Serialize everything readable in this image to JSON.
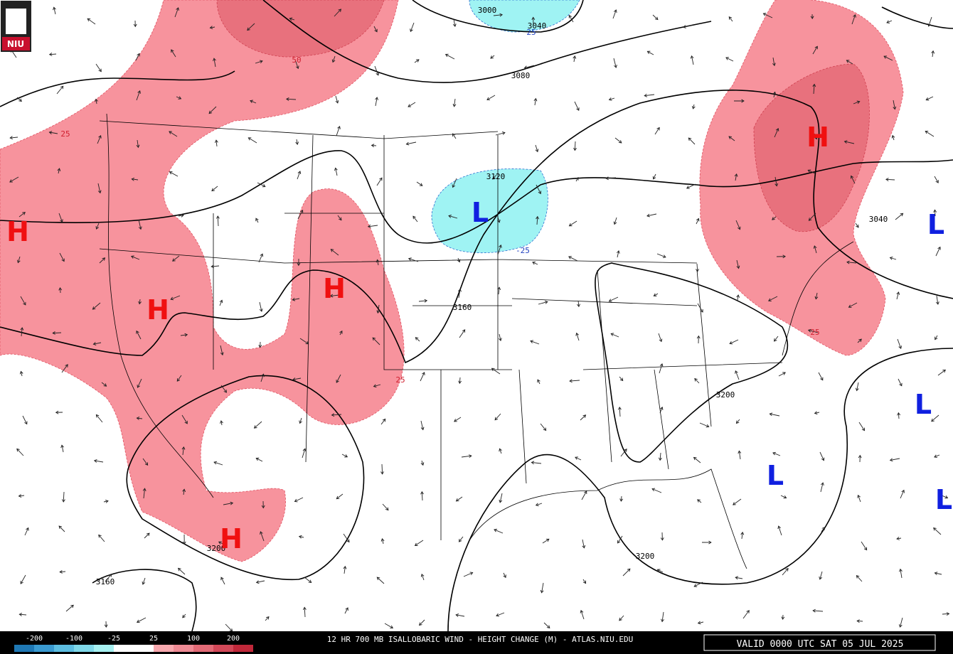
{
  "logo": "NIU",
  "contour_labels": [
    3000,
    3040,
    3080,
    3120,
    3160,
    3200,
    3200,
    3160,
    3200,
    3040
  ],
  "change_labels": [
    25,
    -25,
    50,
    25,
    25,
    25
  ],
  "highs": [
    "H",
    "H",
    "H",
    "H",
    "H"
  ],
  "lows": [
    "L",
    "L",
    "L",
    "L",
    "L"
  ],
  "legend": {
    "ticks": [
      -200,
      -100,
      -25,
      25,
      100,
      200
    ],
    "colors": [
      "#1f78b4",
      "#3a9ad0",
      "#5cbde0",
      "#7fd8e8",
      "#a6f0f0",
      "#ffffff",
      "#ffffff",
      "#f7a8ae",
      "#ee8a94",
      "#e26a76",
      "#d24858",
      "#c0283a"
    ]
  },
  "footer": {
    "title": "12 HR 700 MB ISALLOBARIC WIND - HEIGHT CHANGE (M) - ATLAS.NIU.EDU",
    "valid": "VALID 0000 UTC SAT 05 JUL 2025"
  }
}
